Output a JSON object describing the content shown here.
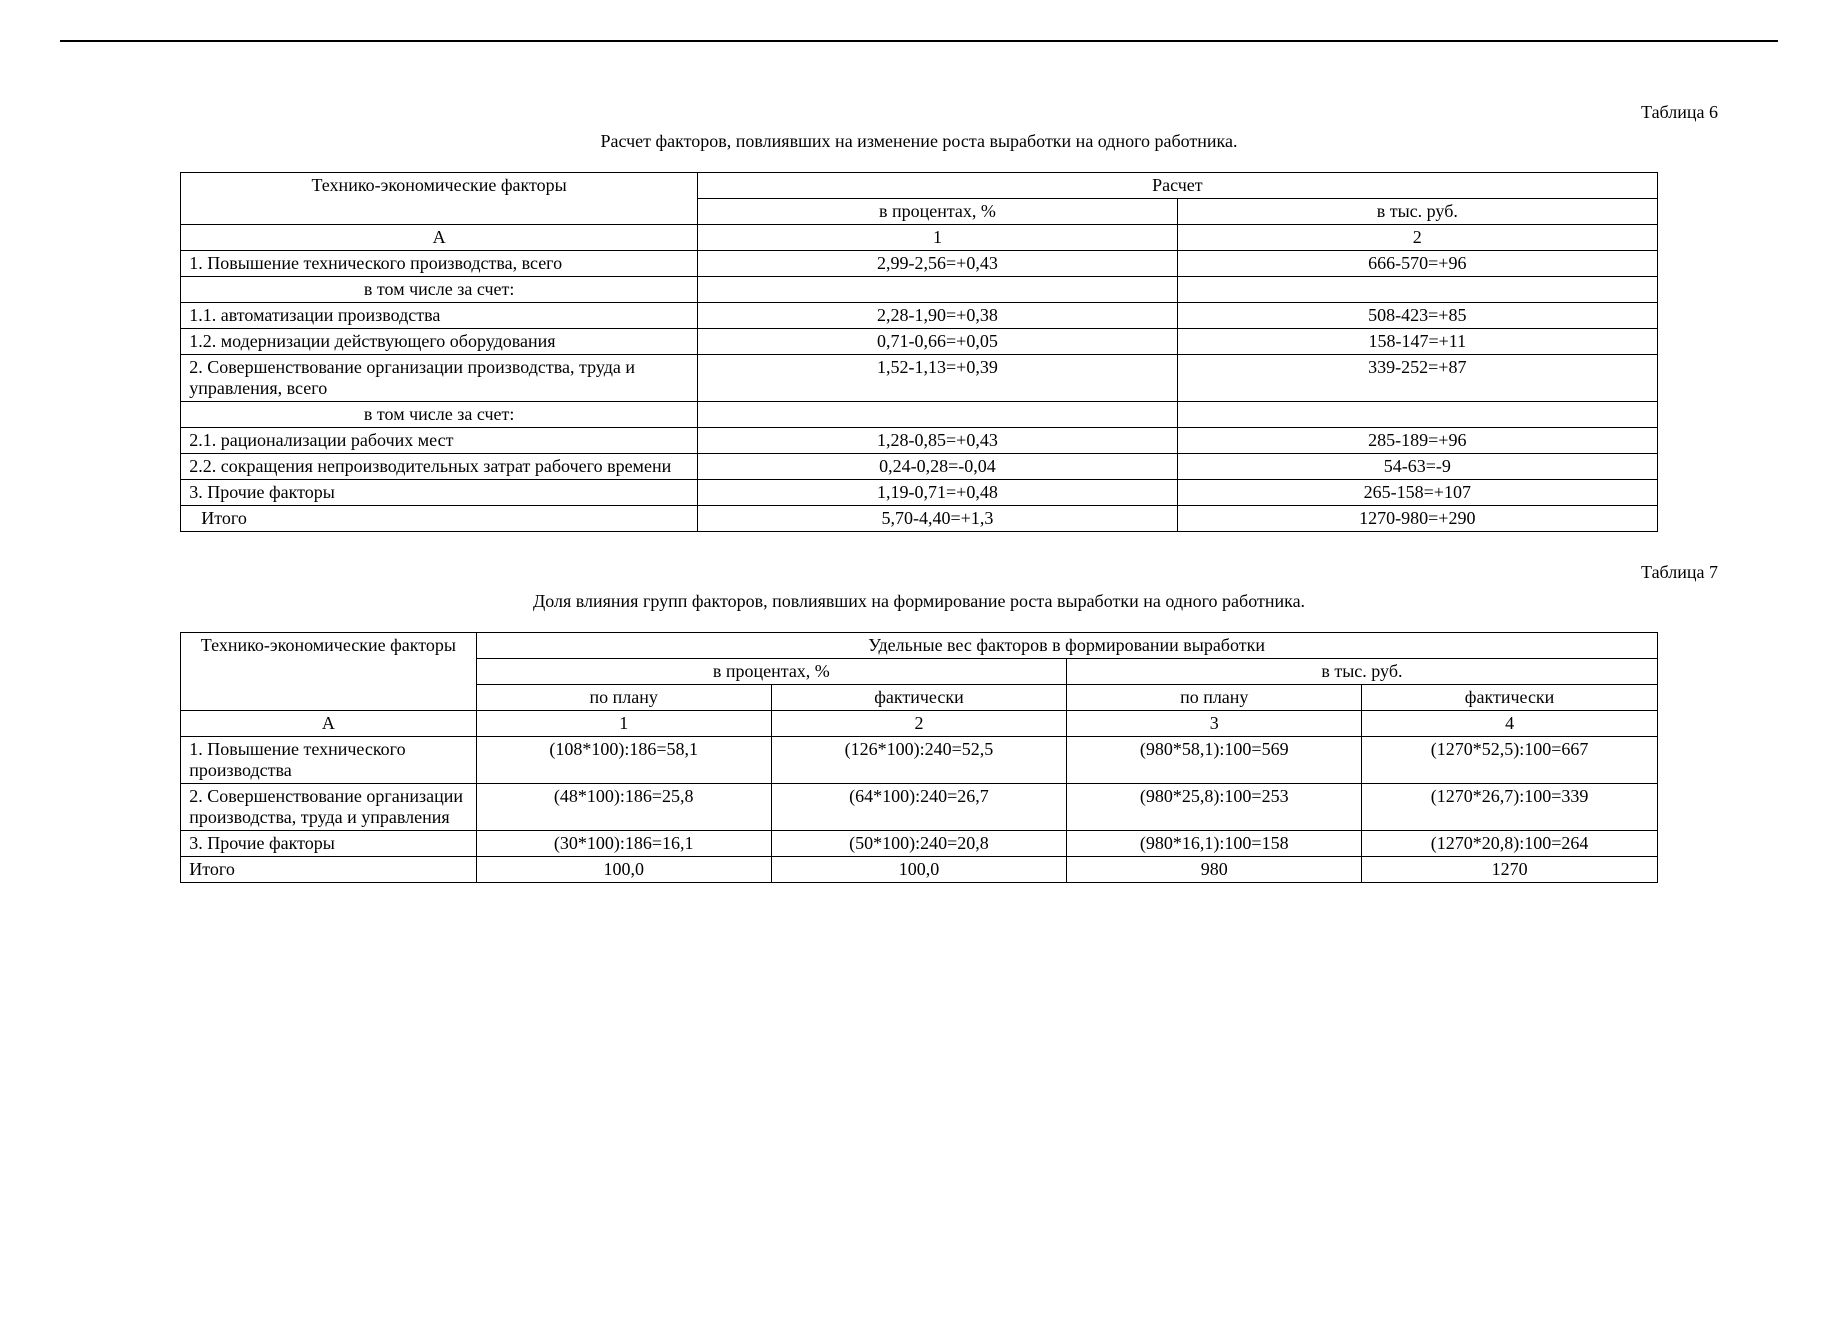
{
  "table6": {
    "label": "Таблица 6",
    "caption": "Расчет факторов, повлиявших на изменение роста выработки на одного работника.",
    "header_col1": "Технико-экономические факторы",
    "header_col2": "Расчет",
    "header_sub1": "в процентах, %",
    "header_sub2": "в тыс. руб.",
    "row_A_label": "А",
    "row_A_c1": "1",
    "row_A_c2": "2",
    "rows": [
      {
        "label": "1. Повышение технического производства, всего",
        "c1": "2,99-2,56=+0,43",
        "c2": "666-570=+96"
      },
      {
        "label": "в том числе за счет:",
        "c1": "",
        "c2": "",
        "centerLabel": true
      },
      {
        "label": "1.1. автоматизации производства",
        "c1": "2,28-1,90=+0,38",
        "c2": "508-423=+85"
      },
      {
        "label": "1.2. модернизации действующего оборудования",
        "c1": "0,71-0,66=+0,05",
        "c2": "158-147=+11"
      },
      {
        "label": "2. Совершенствование организации производства, труда и управления, всего",
        "c1": "1,52-1,13=+0,39",
        "c2": "339-252=+87"
      },
      {
        "label": "в том числе за счет:",
        "c1": "",
        "c2": "",
        "centerLabel": true
      },
      {
        "label": "2.1. рационализации рабочих мест",
        "c1": "1,28-0,85=+0,43",
        "c2": "285-189=+96"
      },
      {
        "label": "2.2. сокращения непроизводительных затрат рабочего времени",
        "c1": "0,24-0,28=-0,04",
        "c2": "54-63=-9"
      },
      {
        "label": "3. Прочие факторы",
        "c1": "1,19-0,71=+0,48",
        "c2": "265-158=+107"
      },
      {
        "label": "Итого",
        "c1": "5,70-4,40=+1,3",
        "c2": "1270-980=+290",
        "indent": true
      }
    ]
  },
  "table7": {
    "label": "Таблица 7",
    "caption": "Доля влияния групп факторов, повлиявших на формирование роста выработки на одного работника.",
    "header_col1": "Технико-экономические факторы",
    "header_col2": "Удельные вес факторов в формировании выработки",
    "header_sub_pct": "в процентах, %",
    "header_sub_rub": "в тыс. руб.",
    "header_plan": "по плану",
    "header_fact": "фактически",
    "row_A": {
      "label": "А",
      "c1": "1",
      "c2": "2",
      "c3": "3",
      "c4": "4"
    },
    "rows": [
      {
        "label": "1. Повышение технического производства",
        "c1": "(108*100):186=58,1",
        "c2": "(126*100):240=52,5",
        "c3": "(980*58,1):100=569",
        "c4": "(1270*52,5):100=667"
      },
      {
        "label": "2. Совершенствование организации производства, труда и управления",
        "c1": "(48*100):186=25,8",
        "c2": "(64*100):240=26,7",
        "c3": "(980*25,8):100=253",
        "c4": "(1270*26,7):100=339"
      },
      {
        "label": "3. Прочие факторы",
        "c1": "(30*100):186=16,1",
        "c2": "(50*100):240=20,8",
        "c3": "(980*16,1):100=158",
        "c4": "(1270*20,8):100=264"
      },
      {
        "label": "Итого",
        "c1": "100,0",
        "c2": "100,0",
        "c3": "980",
        "c4": "1270"
      }
    ]
  }
}
